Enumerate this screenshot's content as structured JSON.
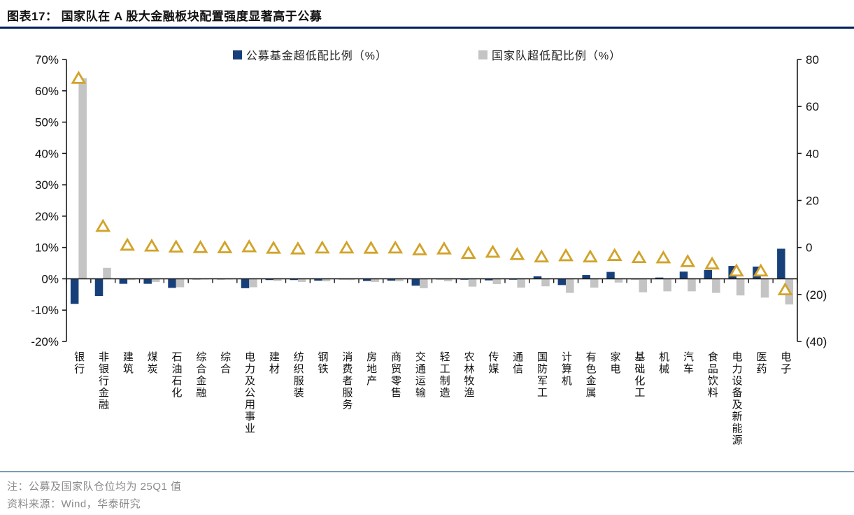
{
  "title": "图表17：  国家队在 A 股大金融板块配置强度显著高于公募",
  "notes": {
    "note1": "注：公募及国家队仓位均为 25Q1 值",
    "note2": "资料来源：Wind，华泰研究"
  },
  "colors": {
    "public_fund_bar": "#17407b",
    "national_team_bar": "#c4c4c4",
    "triangle_marker": "#d2a32a",
    "title_rule": "#001f5b",
    "bottom_rule": "#7e99b5",
    "axis_line": "#1a1a1a",
    "note_text": "#8a8a8a"
  },
  "chart_data": {
    "type": "bar",
    "grid": "off",
    "legend_position": "top-center",
    "categories": [
      "银行",
      "非银行金融",
      "建筑",
      "煤炭",
      "石油石化",
      "综合金融",
      "综合",
      "电力及公用事业",
      "建材",
      "纺织服装",
      "钢铁",
      "消费者服务",
      "房地产",
      "商贸零售",
      "交通运输",
      "轻工制造",
      "农林牧渔",
      "传媒",
      "通信",
      "国防军工",
      "计算机",
      "有色金属",
      "家电",
      "基础化工",
      "机械",
      "汽车",
      "食品饮料",
      "电力设备及新能源",
      "医药",
      "电子"
    ],
    "series": [
      {
        "name": "公募基金超低配比例（%）",
        "type": "bar",
        "axis": "left",
        "color": "#17407b",
        "values": [
          -8.0,
          -5.5,
          -1.6,
          -1.6,
          -2.9,
          -0.1,
          -0.1,
          -3.0,
          -0.4,
          -0.4,
          -0.6,
          -0.2,
          -0.7,
          -0.6,
          -2.2,
          -0.2,
          -0.3,
          -0.5,
          -0.3,
          0.8,
          -2.0,
          1.2,
          2.2,
          -0.2,
          0.4,
          2.3,
          2.8,
          4.1,
          3.9,
          9.6
        ]
      },
      {
        "name": "国家队超低配比例（%）",
        "type": "bar",
        "axis": "left",
        "color": "#c4c4c4",
        "values": [
          64.0,
          3.5,
          -0.4,
          -1.0,
          -2.7,
          -0.1,
          -0.2,
          -2.7,
          -0.7,
          -1.0,
          -0.8,
          -0.4,
          -1.0,
          -0.8,
          -3.0,
          -0.8,
          -2.5,
          -1.7,
          -2.8,
          -2.4,
          -4.5,
          -2.8,
          -1.2,
          -4.3,
          -4.0,
          -4.0,
          -4.5,
          -5.3,
          -6.0,
          -8.2
        ]
      },
      {
        "name": "",
        "type": "triangle-marker",
        "axis": "right",
        "color": "#d2a32a",
        "in_legend": false,
        "values": [
          72,
          9,
          1,
          0.6,
          0.2,
          0,
          -0.1,
          0.3,
          -0.3,
          -0.6,
          -0.2,
          -0.2,
          -0.3,
          -0.2,
          -1,
          -0.6,
          -2.5,
          -2,
          -3,
          -4,
          -3.5,
          -4,
          -3.4,
          -4.3,
          -4.4,
          -6,
          -7,
          -10,
          -10,
          -18
        ]
      }
    ],
    "left_axis": {
      "min": -20,
      "max": 70,
      "tick_step": 10,
      "tick_labels": [
        "70%",
        "60%",
        "50%",
        "40%",
        "30%",
        "20%",
        "10%",
        "0%",
        "-10%",
        "-20%"
      ]
    },
    "right_axis": {
      "min": -40,
      "max": 80,
      "tick_step": 20,
      "tick_labels": [
        "80",
        "60",
        "40",
        "20",
        "0",
        "(20)",
        "(40)"
      ]
    },
    "title": "国家队在 A 股大金融板块配置强度显著高于公募",
    "xlabel": "",
    "ylabel": ""
  }
}
